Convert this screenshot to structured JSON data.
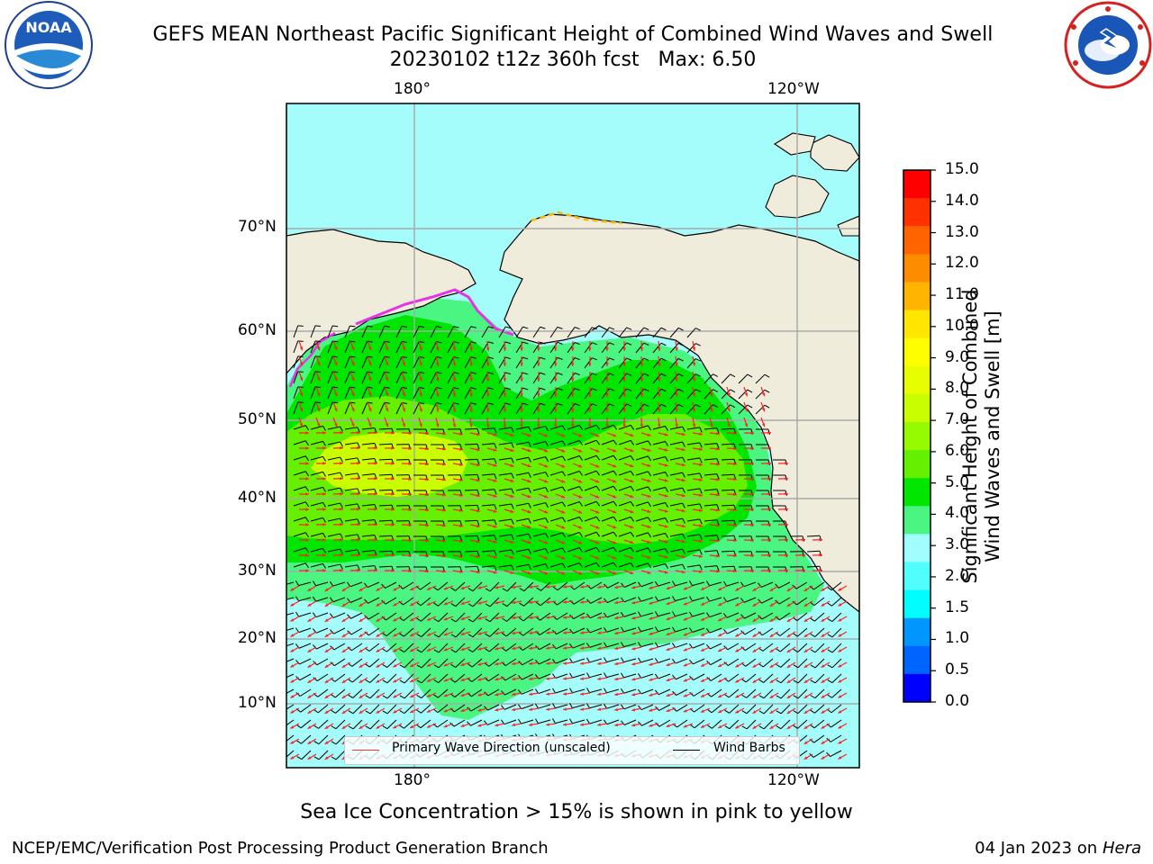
{
  "title": {
    "line1": "GEFS MEAN Northeast Pacific Significant Height of Combined Wind Waves and Swell",
    "line2": "20230102 t12z 360h fcst   Max: 6.50"
  },
  "map": {
    "lon_top_labels": [
      "180°",
      "120°W"
    ],
    "lon_bottom_labels": [
      "180°",
      "120°W"
    ],
    "lat_labels": [
      "70°N",
      "60°N",
      "50°N",
      "40°N",
      "30°N",
      "20°N",
      "10°N"
    ],
    "land_color": "#efecdc",
    "ocean_light_color": "#9ffcfc",
    "legend": {
      "wave_direction": "Primary Wave Direction (unscaled)",
      "wind_barbs": "Wind Barbs"
    }
  },
  "colorbar": {
    "title_line1": "Significant Height of Combined",
    "title_line2": "Wind Waves and Swell [m]",
    "ticks": [
      "15.0",
      "14.0",
      "13.0",
      "12.0",
      "11.0",
      "10.0",
      "9.0",
      "8.0",
      "7.0",
      "6.0",
      "5.0",
      "4.0",
      "3.0",
      "2.0",
      "1.5",
      "1.0",
      "0.5",
      "0.0"
    ],
    "colors_top_to_bottom": [
      "#fe0000",
      "#fe3200",
      "#fe6400",
      "#fe8c00",
      "#feb400",
      "#fee600",
      "#fefe00",
      "#e6fe00",
      "#c8fe00",
      "#96fa00",
      "#64f000",
      "#00e600",
      "#4bf582",
      "#a0fefe",
      "#50fefe",
      "#00fefe",
      "#0096fe",
      "#0064fe",
      "#0000fe"
    ]
  },
  "notes": {
    "ice": "Sea Ice Concentration > 15% is shown in pink to yellow"
  },
  "footer": {
    "left": "NCEP/EMC/Verification Post Processing Product Generation Branch",
    "date": "04 Jan 2023 on ",
    "machine": "Hera"
  }
}
